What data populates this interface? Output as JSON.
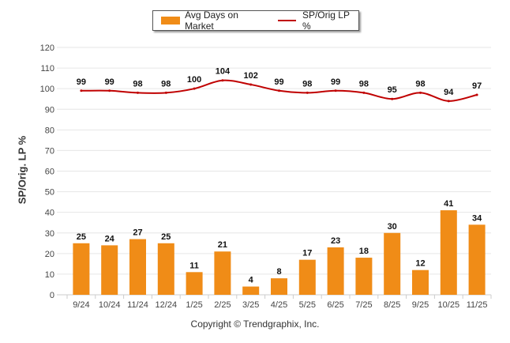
{
  "chart_data": {
    "type": "bar",
    "title": "",
    "xlabel": "",
    "ylabel": "SP/Orig. LP %",
    "ylim": [
      0,
      120
    ],
    "yticks": [
      0,
      10,
      20,
      30,
      40,
      50,
      60,
      70,
      80,
      90,
      100,
      110,
      120
    ],
    "grid": true,
    "legend_position": "top-center",
    "categories": [
      "9/24",
      "10/24",
      "11/24",
      "12/24",
      "1/25",
      "2/25",
      "3/25",
      "4/25",
      "5/25",
      "6/25",
      "7/25",
      "8/25",
      "9/25",
      "10/25",
      "11/25"
    ],
    "series": [
      {
        "name": "Avg Days on Market",
        "type": "bar",
        "color": "#F08C17",
        "values": [
          25,
          24,
          27,
          25,
          11,
          21,
          4,
          8,
          17,
          23,
          18,
          30,
          12,
          41,
          34
        ]
      },
      {
        "name": "SP/Orig LP %",
        "type": "line",
        "color": "#C00000",
        "values": [
          99,
          99,
          98,
          98,
          100,
          104,
          102,
          99,
          98,
          99,
          98,
          95,
          98,
          94,
          97
        ]
      }
    ]
  },
  "legend": {
    "bar_label": "Avg Days on Market",
    "line_label": "SP/Orig LP %"
  },
  "footer": {
    "copyright": "Copyright © Trendgraphix, Inc."
  }
}
